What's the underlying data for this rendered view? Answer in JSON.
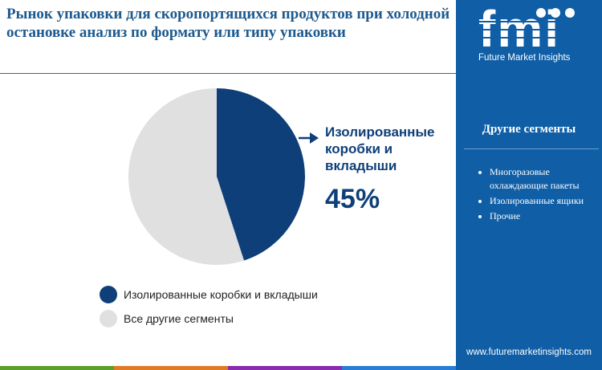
{
  "title": "Рынок упаковки для скоропортящихся продуктов при холодной остановке анализ по формату или типу упаковки",
  "chart_data": {
    "type": "pie",
    "slices": [
      {
        "label": "Изолированные коробки и вкладыши",
        "value": 45,
        "color": "#0f3f78"
      },
      {
        "label": "Все другие сегменты",
        "value": 55,
        "color": "#e0e0e0"
      }
    ]
  },
  "callout": {
    "label": "Изолированные коробки и вкладыши",
    "value": "45%"
  },
  "legend": [
    {
      "label": "Изолированные коробки и вкладыши",
      "color": "#0f3f78"
    },
    {
      "label": "Все другие сегменты",
      "color": "#e0e0e0"
    }
  ],
  "sidebar": {
    "logo_text": "fmi",
    "brand": "Future Market Insights",
    "heading": "Другие сегменты",
    "items": [
      "Многоразовые охлаждающие пакеты",
      "Изолированные ящики",
      "Прочие"
    ],
    "url": "www.futuremarketinsights.com"
  },
  "colors": {
    "accent": "#0f5ea6",
    "dark": "#0f3f78",
    "bar": [
      "#5aa02c",
      "#e07b24",
      "#8a2bb0",
      "#2a7dd6"
    ]
  }
}
